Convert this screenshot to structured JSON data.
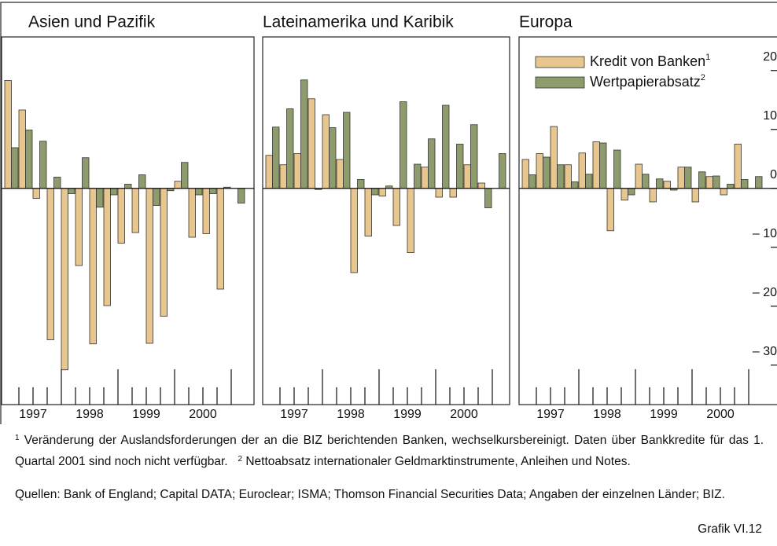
{
  "chart_data": {
    "type": "bar",
    "legend": "top-left",
    "ylim": [
      -36.7,
      25.7
    ],
    "yticks": [
      20,
      10,
      0,
      {
        "value": -10,
        "label": "– 10"
      },
      {
        "value": -20,
        "label": "– 20"
      },
      {
        "value": -30,
        "label": "– 30"
      }
    ],
    "x_labels": [
      "1997",
      "1998",
      "1999",
      "2000"
    ],
    "series_info": [
      {
        "name": "Kredit von Banken",
        "note": "1",
        "color": "#e9c68e"
      },
      {
        "name": "Wertpapierabsatz",
        "note": "2",
        "color": "#8e9c6c"
      }
    ],
    "panels": [
      {
        "title": "Asien und Pazifik",
        "series": [
          {
            "values": [
              18.3,
              13.3,
              -1.7,
              -25.7,
              -30.8,
              -13.1,
              -26.4,
              -19.9,
              -9.3,
              -7.5,
              -26.3,
              -21.7,
              1.2,
              -8.3,
              -7.7,
              -17.1,
              null
            ]
          },
          {
            "values": [
              6.9,
              9.9,
              8.0,
              1.9,
              -0.9,
              5.2,
              -3.2,
              -1.1,
              0.7,
              2.3,
              -2.9,
              -0.4,
              4.4,
              -1.1,
              -0.9,
              0.2,
              -2.5
            ]
          }
        ]
      },
      {
        "title": "Lateinamerika und Karibik",
        "series": [
          {
            "values": [
              5.6,
              4.0,
              5.9,
              15.2,
              12.5,
              4.9,
              -14.3,
              -8.1,
              -1.3,
              -6.3,
              -10.9,
              3.6,
              -1.5,
              -1.5,
              4.0,
              0.9,
              null
            ]
          },
          {
            "values": [
              10.4,
              13.5,
              18.4,
              -0.2,
              10.3,
              12.9,
              1.5,
              -1.1,
              0.4,
              14.7,
              4.1,
              8.4,
              14.1,
              7.5,
              10.8,
              -3.3,
              5.9
            ]
          }
        ]
      },
      {
        "title": "Europa",
        "series": [
          {
            "values": [
              4.9,
              5.9,
              10.5,
              4.0,
              6.0,
              7.9,
              -7.2,
              -2.0,
              4.1,
              -2.3,
              1.2,
              3.6,
              -2.3,
              2.0,
              -1.1,
              7.5,
              null
            ]
          },
          {
            "values": [
              2.3,
              5.3,
              4.0,
              1.1,
              2.4,
              7.7,
              6.5,
              -1.1,
              2.4,
              1.6,
              -0.3,
              3.6,
              2.8,
              2.1,
              0.7,
              1.5,
              2.0
            ]
          }
        ]
      }
    ]
  },
  "notes": [
    {
      "mark": "1",
      "text": "Veränderung der Auslandsforderungen der an die BIZ berichtenden Banken, wechselkursbereinigt. Daten über Bankkredite für das 1. Quartal 2001 sind noch nicht verfügbar."
    },
    {
      "mark": "2",
      "text": "Nettoabsatz internationaler Geldmarktinstrumente, Anleihen und Notes."
    }
  ],
  "sources": "Quellen: Bank of England; Capital DATA; Euroclear; ISMA; Thomson Financial Securities Data; Angaben der einzelnen Länder; BIZ.",
  "figure_id": "Grafik VI.12"
}
